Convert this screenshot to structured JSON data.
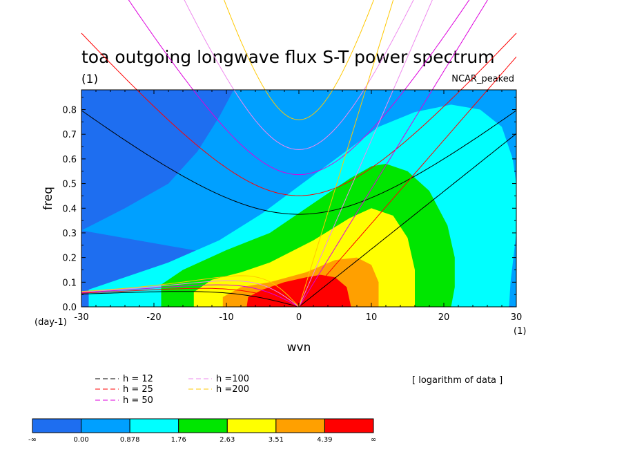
{
  "chart_data": {
    "type": "contour",
    "title": "toa outgoing longwave flux S-T power spectrum",
    "subtitle_left": "(1)",
    "subtitle_right": "NCAR_peaked",
    "xlabel": "wvn",
    "ylabel": "freq",
    "x_units_label": "(1)",
    "y_units_label": "(day-1)",
    "xlim": [
      -30,
      30
    ],
    "ylim": [
      0,
      0.88
    ],
    "xticks": [
      -30,
      -20,
      -10,
      0,
      10,
      20,
      30
    ],
    "yticks": [
      0.0,
      0.1,
      0.2,
      0.3,
      0.4,
      0.5,
      0.6,
      0.7,
      0.8
    ],
    "data_note": "[ logarithm of data ]",
    "levels": [
      {
        "label": "-∞",
        "color": "#1e6ef0"
      },
      {
        "label": "0.00",
        "color": "#00a0ff"
      },
      {
        "label": "0.878",
        "color": "#00ffff"
      },
      {
        "label": "1.76",
        "color": "#00e600"
      },
      {
        "label": "2.63",
        "color": "#ffff00"
      },
      {
        "label": "3.51",
        "color": "#ffa000"
      },
      {
        "label": "4.39",
        "color": "#ff0000"
      },
      {
        "label": "∞",
        "color": null
      }
    ],
    "filled_regions": [
      {
        "level": 1,
        "points": [
          [
            -30,
            0.31
          ],
          [
            -24,
            0.4
          ],
          [
            -18,
            0.5
          ],
          [
            -14,
            0.63
          ],
          [
            -11,
            0.77
          ],
          [
            -9,
            0.88
          ],
          [
            30,
            0.88
          ],
          [
            30,
            0
          ]
        ]
      },
      {
        "level": 2,
        "points": [
          [
            -29,
            0
          ],
          [
            -29,
            0.07
          ],
          [
            -25,
            0.11
          ],
          [
            -18,
            0.18
          ],
          [
            -11,
            0.27
          ],
          [
            -5,
            0.38
          ],
          [
            0,
            0.49
          ],
          [
            6,
            0.62
          ],
          [
            11,
            0.73
          ],
          [
            16,
            0.79
          ],
          [
            21,
            0.82
          ],
          [
            25,
            0.8
          ],
          [
            28,
            0.73
          ],
          [
            29.5,
            0.6
          ],
          [
            30,
            0.5
          ],
          [
            30,
            0.3
          ],
          [
            29.2,
            0.1
          ],
          [
            29,
            0
          ]
        ]
      },
      {
        "level": 3,
        "points": [
          [
            -19,
            0
          ],
          [
            -19,
            0.09
          ],
          [
            -16,
            0.15
          ],
          [
            -10,
            0.23
          ],
          [
            -4,
            0.3
          ],
          [
            2,
            0.42
          ],
          [
            7,
            0.52
          ],
          [
            10,
            0.57
          ],
          [
            12,
            0.58
          ],
          [
            15,
            0.55
          ],
          [
            18,
            0.47
          ],
          [
            20.5,
            0.33
          ],
          [
            21.5,
            0.2
          ],
          [
            21.5,
            0.08
          ],
          [
            21,
            0
          ]
        ]
      },
      {
        "level": 4,
        "points": [
          [
            -14.5,
            0
          ],
          [
            -14.5,
            0.06
          ],
          [
            -12,
            0.11
          ],
          [
            -8,
            0.14
          ],
          [
            -4,
            0.18
          ],
          [
            2,
            0.27
          ],
          [
            7,
            0.36
          ],
          [
            10,
            0.4
          ],
          [
            13,
            0.37
          ],
          [
            15,
            0.28
          ],
          [
            16,
            0.15
          ],
          [
            16,
            0
          ]
        ]
      },
      {
        "level": 5,
        "points": [
          [
            -10.5,
            0
          ],
          [
            -10.5,
            0.04
          ],
          [
            -8,
            0.08
          ],
          [
            -4,
            0.1
          ],
          [
            1,
            0.14
          ],
          [
            5,
            0.19
          ],
          [
            8,
            0.2
          ],
          [
            10,
            0.17
          ],
          [
            11,
            0.1
          ],
          [
            11,
            0
          ]
        ]
      },
      {
        "level": 6,
        "points": [
          [
            -7.2,
            0
          ],
          [
            -7,
            0.04
          ],
          [
            -5,
            0.07
          ],
          [
            -2,
            0.1
          ],
          [
            1,
            0.12
          ],
          [
            3,
            0.13
          ],
          [
            5,
            0.12
          ],
          [
            6.6,
            0.08
          ],
          [
            7.2,
            0
          ]
        ]
      }
    ],
    "dispersion_curves": [
      {
        "name": "h = 12",
        "color": "#000000",
        "equivalent_depth": 12
      },
      {
        "name": "h = 25",
        "color": "#ff0000",
        "equivalent_depth": 25
      },
      {
        "name": "h = 50",
        "color": "#dd00dd",
        "equivalent_depth": 50
      },
      {
        "name": "h =100",
        "color": "#ee88ee",
        "equivalent_depth": 100
      },
      {
        "name": "h =200",
        "color": "#ffc800",
        "equivalent_depth": 200
      }
    ]
  },
  "legend": {
    "lines": [
      {
        "label": "h = 12",
        "color": "#000000"
      },
      {
        "label": "h = 25",
        "color": "#ff0000"
      },
      {
        "label": "h = 50",
        "color": "#dd00dd"
      },
      {
        "label": "h =100",
        "color": "#ee88ee"
      },
      {
        "label": "h =200",
        "color": "#ffc800"
      }
    ]
  }
}
